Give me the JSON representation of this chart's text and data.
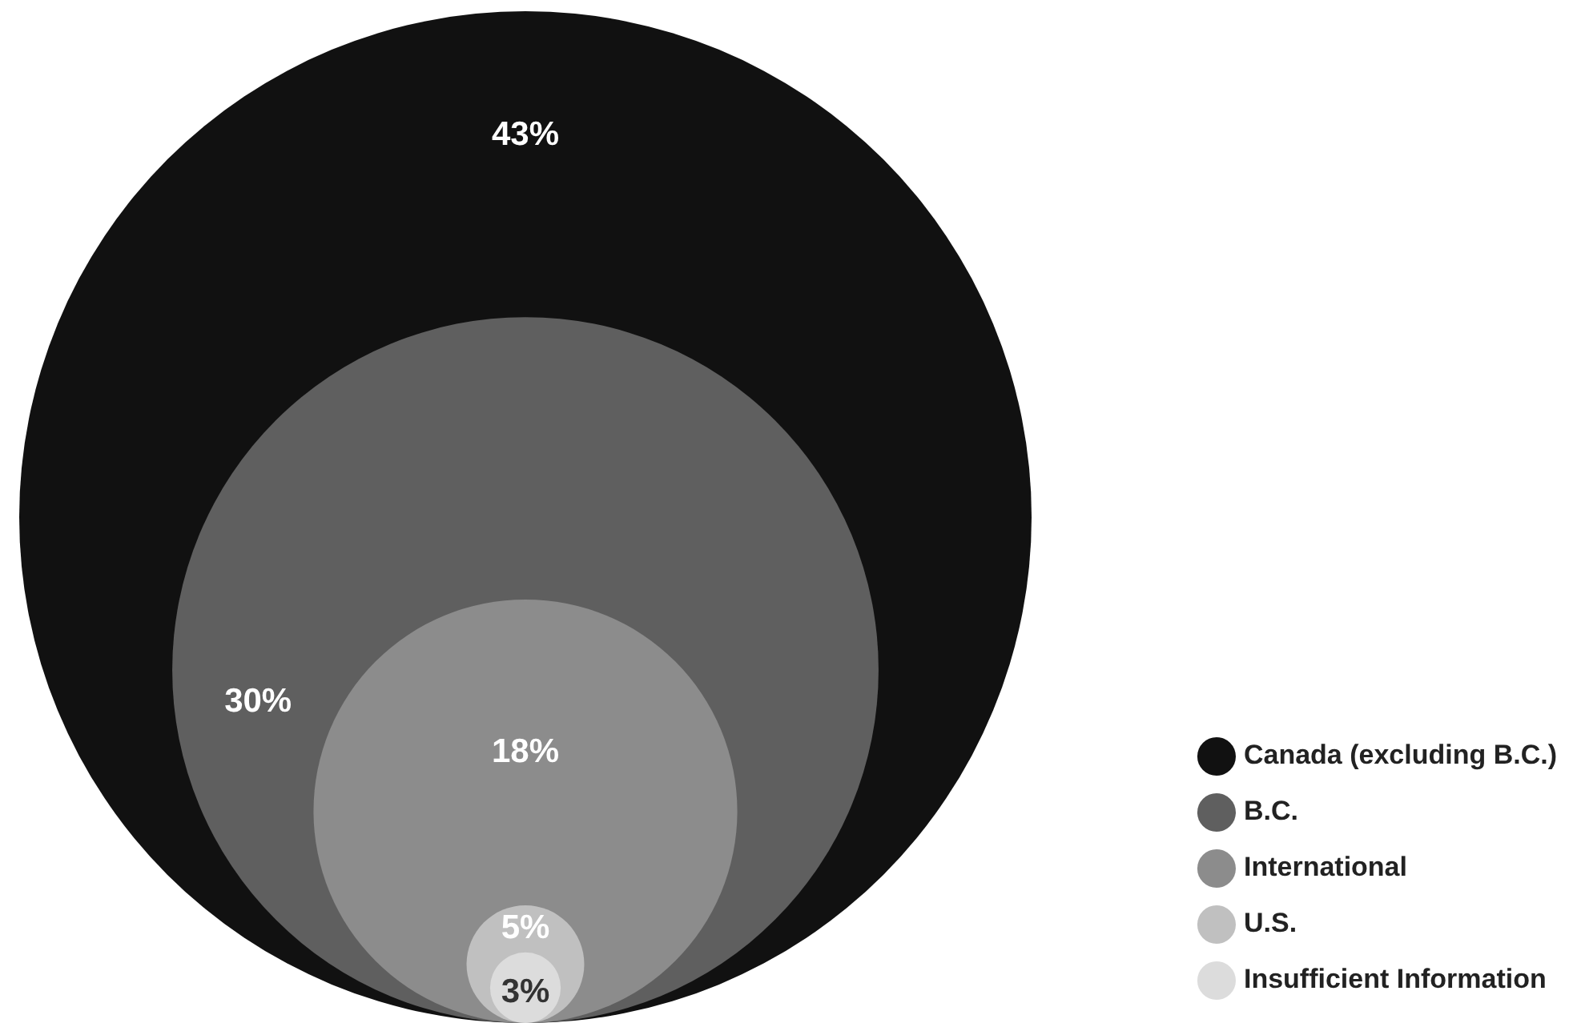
{
  "chart_data": {
    "type": "other",
    "categories": [
      "Canada (excluding B.C.)",
      "B.C.",
      "International",
      "U.S.",
      "Insufficient Information"
    ],
    "values": [
      43,
      30,
      18,
      5,
      3
    ],
    "value_labels": [
      "43%",
      "30%",
      "18%",
      "5%",
      "3%"
    ],
    "colors": [
      "#111111",
      "#5f5f5f",
      "#8c8c8c",
      "#c0c0c0",
      "#dcdcdc"
    ]
  }
}
